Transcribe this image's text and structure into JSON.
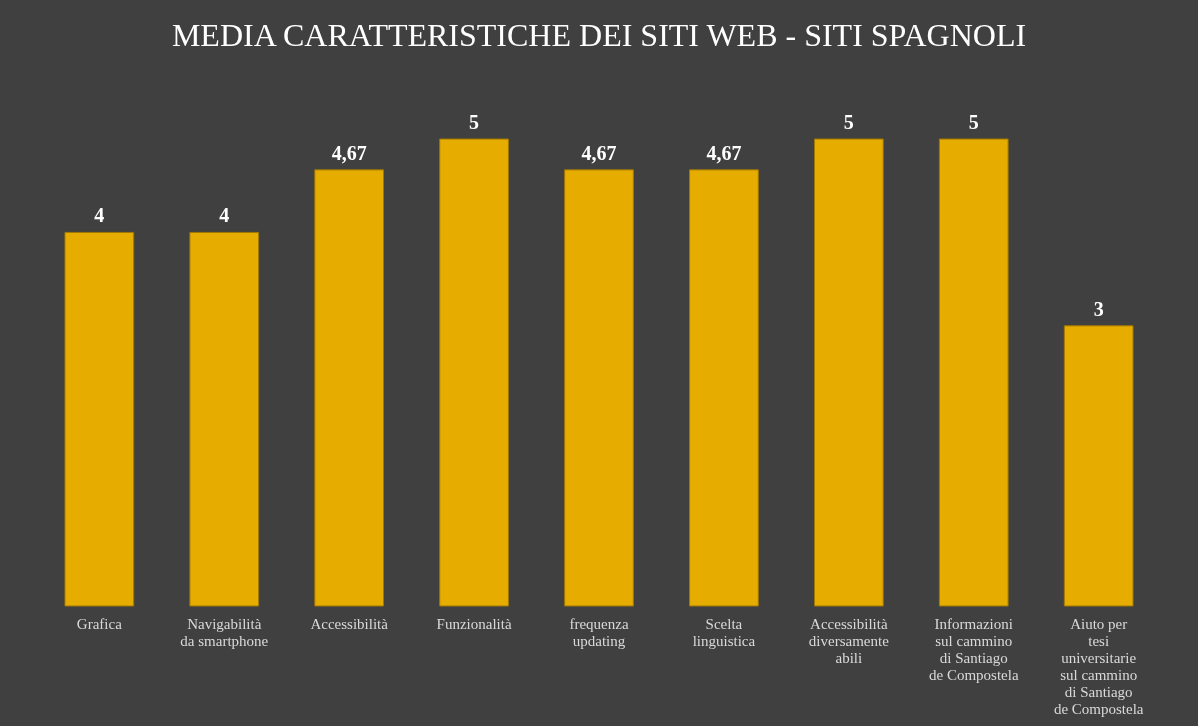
{
  "chart_data": {
    "type": "bar",
    "title": "MEDIA CARATTERISTICHE DEI SITI WEB - SITI SPAGNOLI",
    "categories": [
      "Grafica",
      "Navigabilità da smartphone",
      "Accessibilità",
      "Funzionalità",
      "frequenza updating",
      "Scelta linguistica",
      "Accessibilità diversamente abili",
      "Informazioni sul cammino di Santiago de Compostela",
      "Aiuto per tesi universitarie sul cammino di Santiago de Compostela"
    ],
    "values": [
      4,
      4,
      4.67,
      5,
      4.67,
      4.67,
      5,
      5,
      3
    ],
    "value_labels": [
      "4",
      "4",
      "4,67",
      "5",
      "4,67",
      "4,67",
      "5",
      "5",
      "3"
    ],
    "color": "#e6ac00"
  }
}
